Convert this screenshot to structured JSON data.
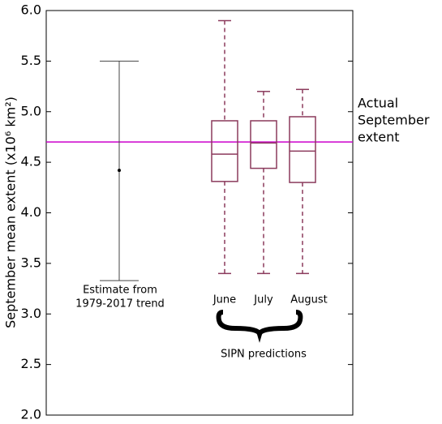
{
  "chart_data": {
    "type": "box",
    "y_label": "September mean extent (x10⁶ km²)",
    "ylim": [
      2.0,
      6.0
    ],
    "yticks": [
      {
        "value": 2.0,
        "label": "2.0"
      },
      2.5,
      {
        "value": 3.0,
        "label": "3.0"
      },
      3.5,
      {
        "value": 4.0,
        "label": "4.0"
      },
      4.5,
      {
        "value": 5.0,
        "label": "5.0"
      },
      5.5,
      {
        "value": 6.0,
        "label": "6.0"
      }
    ],
    "estimate": {
      "label": [
        "Estimate from",
        "1979-2017 trend"
      ],
      "value": 4.42,
      "low": 3.33,
      "high": 5.5,
      "color": "#444444"
    },
    "reference": {
      "label": [
        "Actual",
        "September",
        "extent"
      ],
      "value": 4.7,
      "color": "#cc00cc"
    },
    "group_label": "SIPN predictions",
    "box_color": "#8b3a5c",
    "boxes": [
      {
        "name": "June",
        "low": 3.4,
        "q1": 4.31,
        "median": 4.58,
        "q3": 4.91,
        "high": 5.9
      },
      {
        "name": "July",
        "low": 3.4,
        "q1": 4.44,
        "median": 4.69,
        "q3": 4.91,
        "high": 5.2
      },
      {
        "name": "August",
        "low": 3.4,
        "q1": 4.3,
        "median": 4.61,
        "q3": 4.95,
        "high": 5.22
      }
    ]
  }
}
